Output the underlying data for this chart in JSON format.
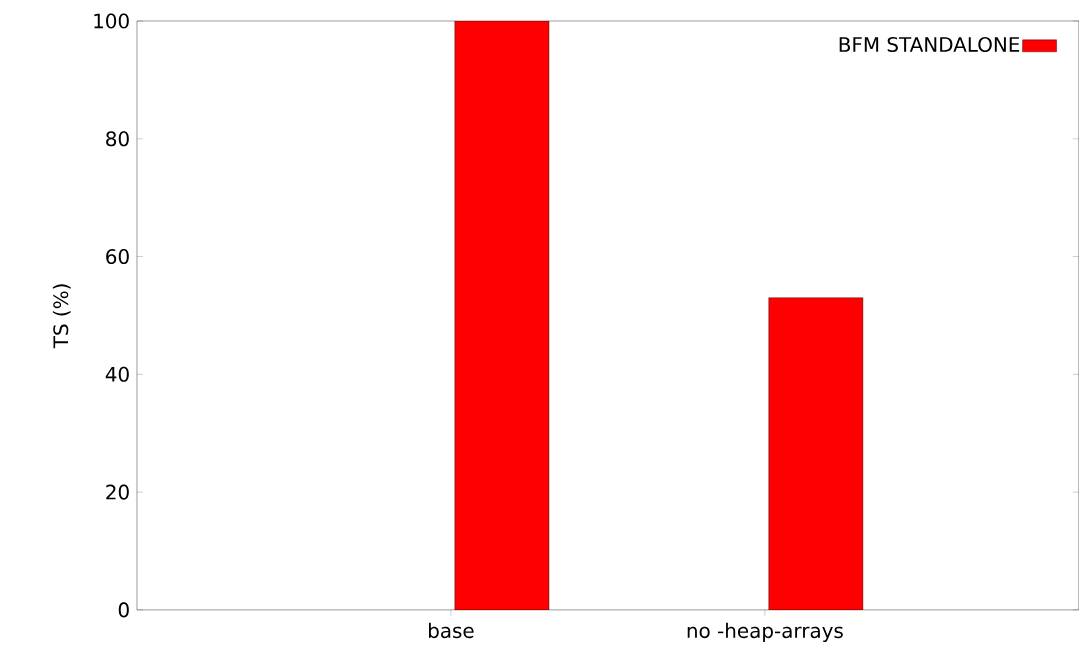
{
  "chart_data": {
    "type": "bar",
    "ylabel": "TS (%)",
    "categories": [
      "base",
      "no -heap-arrays"
    ],
    "series": [
      {
        "name": "BFM STANDALONE",
        "color": "#ff0000",
        "values": [
          100,
          53
        ]
      }
    ],
    "ylim": [
      0,
      100
    ],
    "yticks": [
      0,
      20,
      40,
      60,
      80,
      100
    ],
    "grid": false,
    "legend": "top right"
  }
}
